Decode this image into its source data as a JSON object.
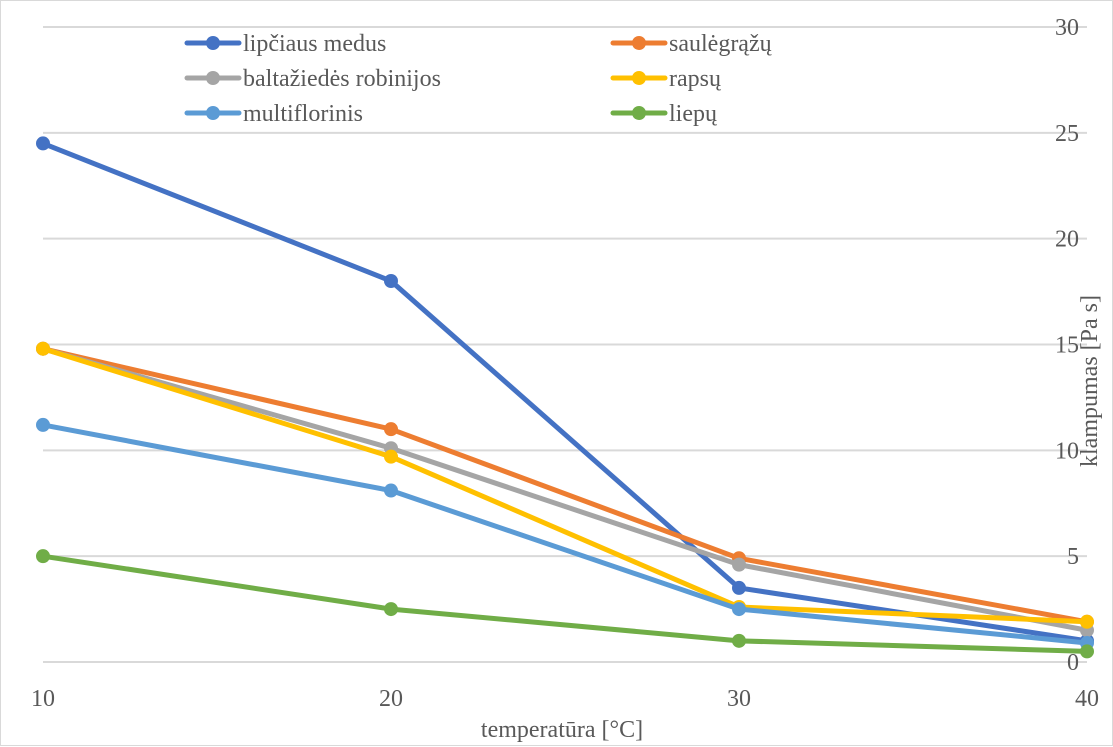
{
  "chart_data": {
    "type": "line",
    "title": "",
    "xlabel": "temperatūra [°C]",
    "ylabel": "klampumas [Pa s]",
    "x": [
      10,
      20,
      30,
      40
    ],
    "x_ticks": [
      "10",
      "20",
      "30",
      "40"
    ],
    "y_ticks": [
      "0",
      "5",
      "10",
      "15",
      "20",
      "25",
      "30"
    ],
    "ylim": [
      0,
      30
    ],
    "y_axis_side": "right",
    "grid": "horizontal",
    "legend_position": "top",
    "series": [
      {
        "name": "lipčiaus medus",
        "color": "#4472c4",
        "values": [
          24.5,
          18.0,
          3.5,
          1.0
        ]
      },
      {
        "name": "saulėgrąžų",
        "color": "#ed7d31",
        "values": [
          14.8,
          11.0,
          4.9,
          1.9
        ]
      },
      {
        "name": "baltažiedės robinijos",
        "color": "#a5a5a5",
        "values": [
          14.8,
          10.1,
          4.6,
          1.5
        ]
      },
      {
        "name": "rapsų",
        "color": "#ffc000",
        "values": [
          14.8,
          9.7,
          2.6,
          1.9
        ]
      },
      {
        "name": "multiflorinis",
        "color": "#5b9bd5",
        "values": [
          11.2,
          8.1,
          2.5,
          0.9
        ]
      },
      {
        "name": "liepų",
        "color": "#70ad47",
        "values": [
          5.0,
          2.5,
          1.0,
          0.5
        ]
      }
    ]
  }
}
